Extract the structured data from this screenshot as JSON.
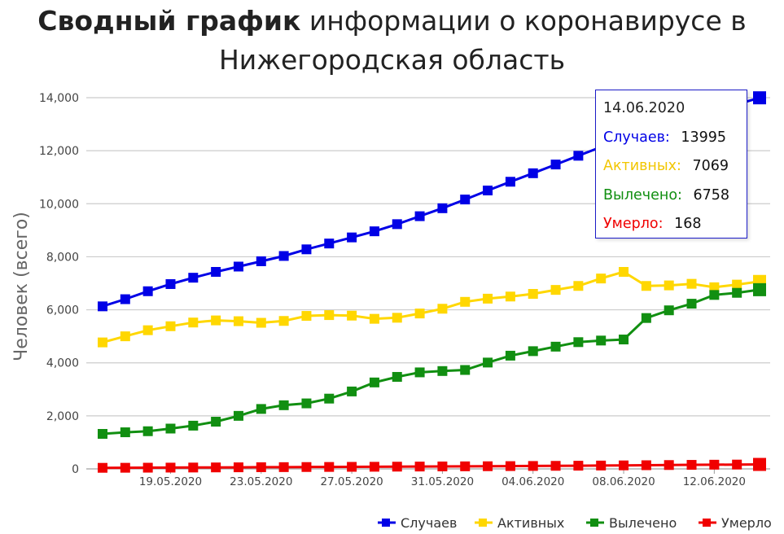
{
  "title": {
    "bold": "Сводный график",
    "rest_line1": "информации о коронавирусе в",
    "line2": "Нижегородская область"
  },
  "chart_data": {
    "type": "line",
    "ylabel": "Человек (всего)",
    "xlabel": "",
    "ylim": [
      0,
      14000
    ],
    "yticks": [
      0,
      2000,
      4000,
      6000,
      8000,
      10000,
      12000,
      14000
    ],
    "ytick_labels": [
      "0",
      "2,000",
      "4,000",
      "6,000",
      "8,000",
      "10,000",
      "12,000",
      "14,000"
    ],
    "x": [
      "2020-05-16",
      "2020-05-17",
      "2020-05-18",
      "2020-05-19",
      "2020-05-20",
      "2020-05-21",
      "2020-05-22",
      "2020-05-23",
      "2020-05-24",
      "2020-05-25",
      "2020-05-26",
      "2020-05-27",
      "2020-05-28",
      "2020-05-29",
      "2020-05-30",
      "2020-05-31",
      "2020-06-01",
      "2020-06-02",
      "2020-06-03",
      "2020-06-04",
      "2020-06-05",
      "2020-06-06",
      "2020-06-07",
      "2020-06-08",
      "2020-06-09",
      "2020-06-10",
      "2020-06-11",
      "2020-06-12",
      "2020-06-13",
      "2020-06-14"
    ],
    "xtick_labels": [
      "19.05.2020",
      "23.05.2020",
      "27.05.2020",
      "31.05.2020",
      "04.06.2020",
      "08.06.2020",
      "12.06.2020"
    ],
    "xtick_dates": [
      "2020-05-19",
      "2020-05-23",
      "2020-05-27",
      "2020-05-31",
      "2020-06-04",
      "2020-06-08",
      "2020-06-12"
    ],
    "grid": true,
    "legend_position": "bottom-right",
    "series": [
      {
        "name": "Случаев",
        "color": "#0000e6",
        "values": [
          6130,
          6400,
          6700,
          6970,
          7210,
          7430,
          7630,
          7830,
          8030,
          8280,
          8500,
          8730,
          8960,
          9230,
          9530,
          9830,
          10160,
          10500,
          10830,
          11150,
          11480,
          11810,
          12140,
          12460,
          12790,
          13100,
          13330,
          13560,
          13750,
          13995
        ]
      },
      {
        "name": "Активных",
        "color": "#ffd700",
        "values": [
          4770,
          5000,
          5230,
          5380,
          5520,
          5600,
          5570,
          5510,
          5580,
          5770,
          5800,
          5780,
          5660,
          5700,
          5860,
          6040,
          6300,
          6420,
          6500,
          6600,
          6750,
          6900,
          7180,
          7430,
          6900,
          6920,
          6980,
          6850,
          6950,
          7069
        ]
      },
      {
        "name": "Вылечено",
        "color": "#118f11",
        "values": [
          1320,
          1380,
          1420,
          1520,
          1630,
          1780,
          2000,
          2260,
          2400,
          2470,
          2650,
          2920,
          3260,
          3470,
          3640,
          3690,
          3730,
          4010,
          4270,
          4440,
          4610,
          4780,
          4840,
          4880,
          5690,
          5980,
          6230,
          6560,
          6640,
          6758
        ]
      },
      {
        "name": "Умерло",
        "color": "#f00000",
        "values": [
          40,
          42,
          45,
          48,
          51,
          55,
          59,
          63,
          66,
          70,
          73,
          77,
          80,
          84,
          88,
          92,
          96,
          100,
          105,
          110,
          115,
          120,
          126,
          132,
          138,
          145,
          152,
          158,
          163,
          168
        ]
      }
    ]
  },
  "tooltip": {
    "date": "14.06.2020",
    "rows": [
      {
        "label": "Случаев:",
        "value": "13995",
        "color": "#0000e6"
      },
      {
        "label": "Активных:",
        "value": "7069",
        "color": "#f2c600"
      },
      {
        "label": "Вылечено:",
        "value": "6758",
        "color": "#118f11"
      },
      {
        "label": "Умерло:",
        "value": "168",
        "color": "#f00000"
      }
    ]
  }
}
